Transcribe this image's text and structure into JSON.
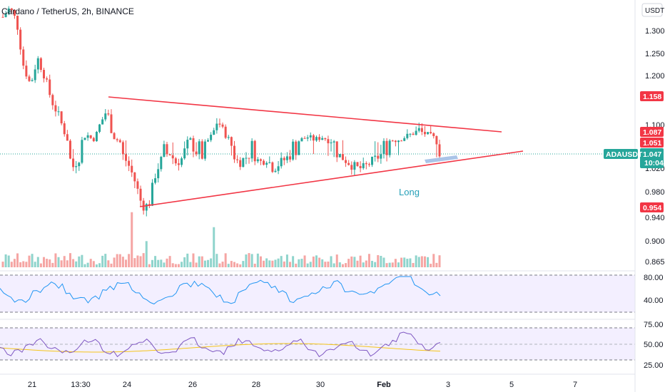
{
  "chart_data": {
    "type": "candlestick",
    "title": "Cardano / TetherUS, 2h, BINANCE",
    "currency": "USDT",
    "symbol": "ADAUSDT",
    "last_price": "1.047",
    "countdown": "10:04",
    "price_axis_ticks": [
      "1.300",
      "1.250",
      "1.200",
      "1.100",
      "1.020",
      "0.980",
      "0.940",
      "0.900",
      "0.865"
    ],
    "price_badges": [
      {
        "label": "1.158",
        "value": 1.158,
        "color": "#f23645"
      },
      {
        "label": "1.087",
        "value": 1.087,
        "color": "#f23645"
      },
      {
        "label": "1.051",
        "value": 1.051,
        "color": "#f23645"
      },
      {
        "label": "0.954",
        "value": 0.954,
        "color": "#f23645"
      }
    ],
    "x_axis_labels": [
      "21",
      "13:30",
      "24",
      "26",
      "28",
      "30",
      "Feb",
      "3",
      "5",
      "7"
    ],
    "annotation": {
      "text": "Long",
      "color": "#26a0b8"
    },
    "trendlines": [
      {
        "name": "upper",
        "color": "#f23645"
      },
      {
        "name": "lower",
        "color": "#f23645"
      }
    ],
    "colors": {
      "up": "#26a69a",
      "down": "#ef5350",
      "up_volume": "#8fd4cc",
      "down_volume": "#f5a5a3",
      "rsi_line": "#2196f3",
      "rsi2_line": "#7e57c2",
      "rsi2_ma": "#f5c518",
      "band": "#f3efff"
    },
    "candles_close_path": [
      1.33,
      1.35,
      1.32,
      1.22,
      1.18,
      1.24,
      1.2,
      1.15,
      1.12,
      1.08,
      1.02,
      1.04,
      1.08,
      1.06,
      1.1,
      1.13,
      1.07,
      1.05,
      1.03,
      1.0,
      0.96,
      0.955,
      1.01,
      1.04,
      1.05,
      1.03,
      1.04,
      1.06,
      1.05,
      1.04,
      1.07,
      1.11,
      1.08,
      1.05,
      1.03,
      1.04,
      1.05,
      1.03,
      1.04,
      1.02,
      1.03,
      1.04,
      1.05,
      1.06,
      1.07,
      1.06,
      1.07,
      1.06,
      1.05,
      1.04,
      1.03,
      1.02,
      1.02,
      1.03,
      1.04,
      1.05,
      1.06,
      1.06,
      1.07,
      1.08,
      1.09,
      1.08,
      1.07,
      1.05
    ],
    "indicator1": {
      "ticks": [
        "80.00",
        "40.00"
      ],
      "band": [
        40,
        80
      ]
    },
    "indicator2": {
      "ticks": [
        "75.00",
        "50.00",
        "25.00"
      ],
      "band": [
        25,
        75
      ]
    }
  }
}
